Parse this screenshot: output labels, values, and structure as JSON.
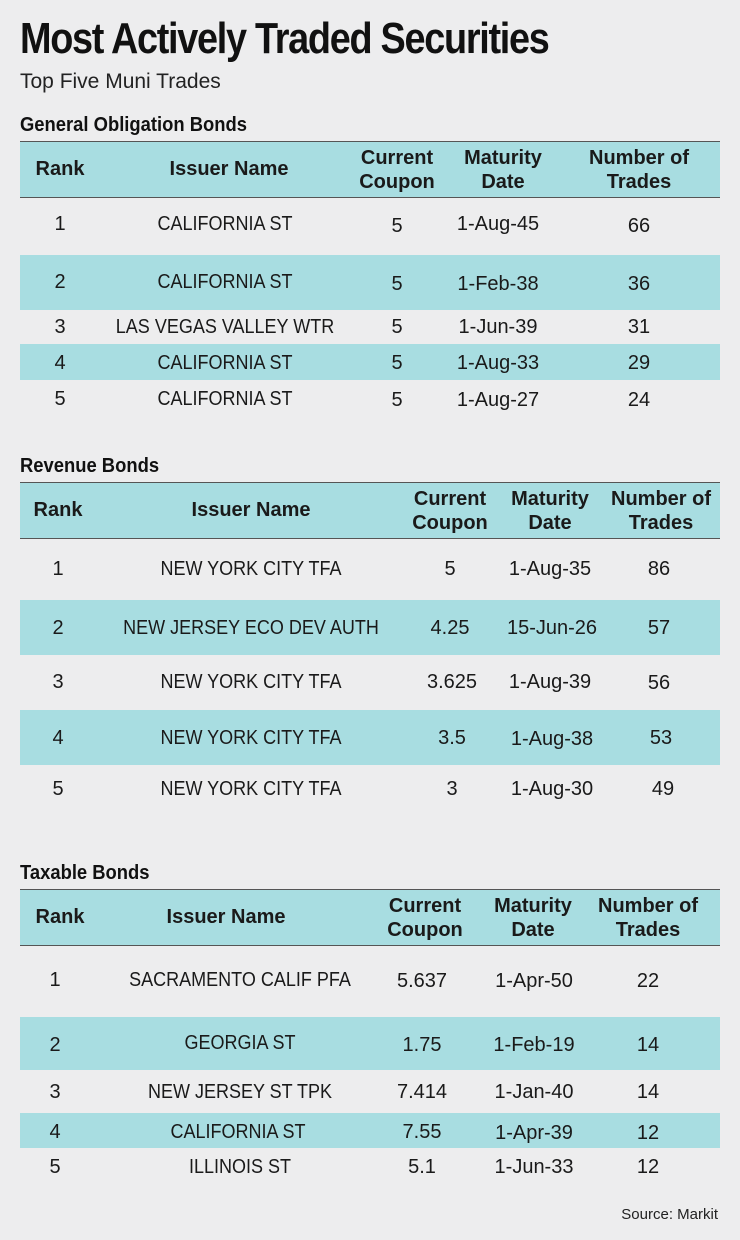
{
  "title": "Most Actively Traded Securities",
  "subtitle": "Top Five Muni Trades",
  "source": "Source: Markit",
  "columns": {
    "rank": "Rank",
    "issuer": "Issuer Name",
    "coupon_1": "Current",
    "coupon_2": "Coupon",
    "maturity_1": "Maturity",
    "maturity_2": "Date",
    "trades_1": "Number of",
    "trades_2": "Trades"
  },
  "sections": [
    {
      "title": "General Obligation Bonds",
      "rows": [
        {
          "rank": "1",
          "issuer": "CALIFORNIA ST",
          "coupon": "5",
          "maturity": "1-Aug-45",
          "trades": "66"
        },
        {
          "rank": "2",
          "issuer": "CALIFORNIA ST",
          "coupon": "5",
          "maturity": "1-Feb-38",
          "trades": "36"
        },
        {
          "rank": "3",
          "issuer": "LAS VEGAS VALLEY WTR",
          "coupon": "5",
          "maturity": "1-Jun-39",
          "trades": "31"
        },
        {
          "rank": "4",
          "issuer": "CALIFORNIA ST",
          "coupon": "5",
          "maturity": "1-Aug-33",
          "trades": "29"
        },
        {
          "rank": "5",
          "issuer": "CALIFORNIA ST",
          "coupon": "5",
          "maturity": "1-Aug-27",
          "trades": "24"
        }
      ]
    },
    {
      "title": "Revenue Bonds",
      "rows": [
        {
          "rank": "1",
          "issuer": "NEW YORK CITY TFA",
          "coupon": "5",
          "maturity": "1-Aug-35",
          "trades": "86"
        },
        {
          "rank": "2",
          "issuer": "NEW JERSEY ECO DEV AUTH",
          "coupon": "4.25",
          "maturity": "15-Jun-26",
          "trades": "57"
        },
        {
          "rank": "3",
          "issuer": "NEW YORK CITY TFA",
          "coupon": "3.625",
          "maturity": "1-Aug-39",
          "trades": "56"
        },
        {
          "rank": "4",
          "issuer": "NEW YORK CITY TFA",
          "coupon": "3.5",
          "maturity": "1-Aug-38",
          "trades": "53"
        },
        {
          "rank": "5",
          "issuer": "NEW YORK CITY TFA",
          "coupon": "3",
          "maturity": "1-Aug-30",
          "trades": "49"
        }
      ]
    },
    {
      "title": "Taxable Bonds",
      "rows": [
        {
          "rank": "1",
          "issuer": "SACRAMENTO CALIF PFA",
          "coupon": "5.637",
          "maturity": "1-Apr-50",
          "trades": "22"
        },
        {
          "rank": "2",
          "issuer": "GEORGIA ST",
          "coupon": "1.75",
          "maturity": "1-Feb-19",
          "trades": "14"
        },
        {
          "rank": "3",
          "issuer": "NEW JERSEY ST TPK",
          "coupon": "7.414",
          "maturity": "1-Jan-40",
          "trades": "14"
        },
        {
          "rank": "4",
          "issuer": "CALIFORNIA ST",
          "coupon": "7.55",
          "maturity": "1-Apr-39",
          "trades": "12"
        },
        {
          "rank": "5",
          "issuer": "ILLINOIS ST",
          "coupon": "5.1",
          "maturity": "1-Jun-33",
          "trades": "12"
        }
      ]
    }
  ],
  "colors": {
    "accent": "#a8dde1",
    "background": "#ededee"
  }
}
